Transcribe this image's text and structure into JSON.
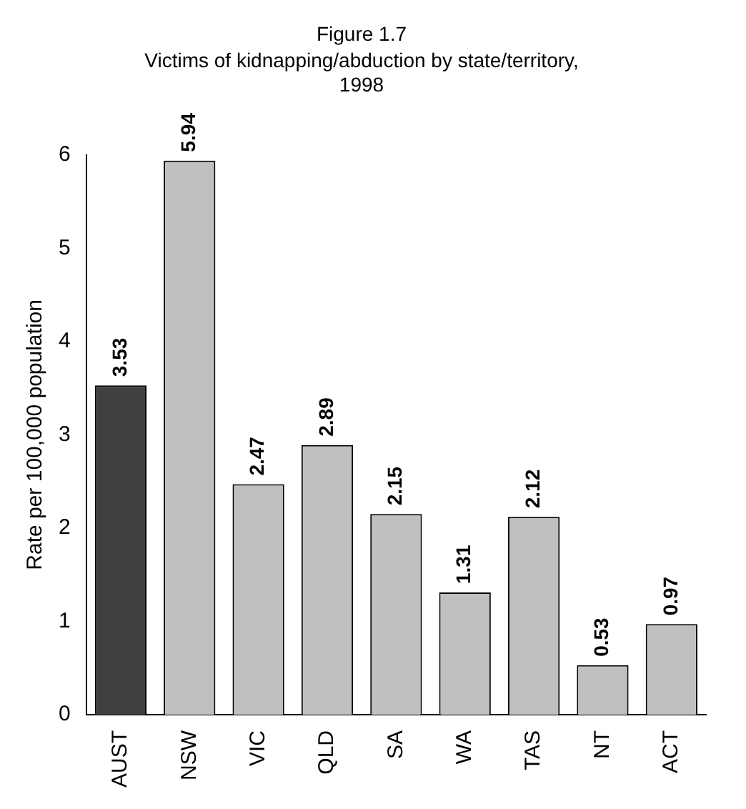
{
  "chart_data": {
    "type": "bar",
    "title": "Figure 1.7",
    "subtitle": "Victims of kidnapping/abduction by state/territory, 1998",
    "ylabel": "Rate per 100,000 population",
    "categories": [
      "AUST",
      "NSW",
      "VIC",
      "QLD",
      "SA",
      "WA",
      "TAS",
      "NT",
      "ACT"
    ],
    "values": [
      3.53,
      5.94,
      2.47,
      2.89,
      2.15,
      1.31,
      2.12,
      0.53,
      0.97
    ],
    "colors": [
      "#404040",
      "#c0c0c0",
      "#c0c0c0",
      "#c0c0c0",
      "#c0c0c0",
      "#c0c0c0",
      "#c0c0c0",
      "#c0c0c0",
      "#c0c0c0"
    ],
    "ylim": [
      0,
      6
    ],
    "yticks": [
      0,
      1,
      2,
      3,
      4,
      5,
      6
    ],
    "grid": false,
    "legend": false,
    "data_labels": true
  }
}
